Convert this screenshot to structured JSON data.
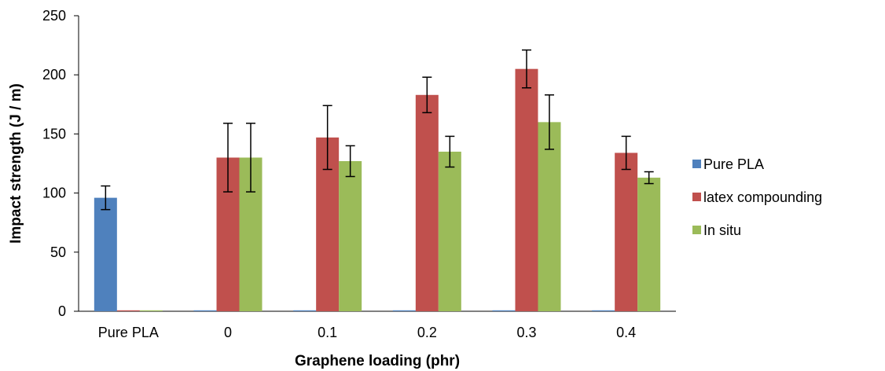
{
  "chart_data": {
    "type": "bar",
    "xlabel": "Graphene loading (phr)",
    "ylabel": "Impact strength (J / m)",
    "ylim": [
      0,
      250
    ],
    "yticks": [
      0,
      50,
      100,
      150,
      200,
      250
    ],
    "grid": false,
    "legend_position": "right",
    "categories": [
      "Pure PLA",
      "0",
      "0.1",
      "0.2",
      "0.3",
      "0.4"
    ],
    "series": [
      {
        "name": "Pure PLA",
        "color": "#4f81bd",
        "values": [
          96,
          0,
          0,
          0,
          0,
          0
        ],
        "errors": [
          10,
          0,
          0,
          0,
          0,
          0
        ]
      },
      {
        "name": "latex compounding",
        "color": "#c0504d",
        "values": [
          0,
          130,
          147,
          183,
          205,
          134
        ],
        "errors": [
          0,
          29,
          27,
          15,
          16,
          14
        ]
      },
      {
        "name": "In situ",
        "color": "#9bbb59",
        "values": [
          0,
          130,
          127,
          135,
          160,
          113
        ],
        "errors": [
          0,
          29,
          13,
          13,
          23,
          5
        ]
      }
    ]
  }
}
